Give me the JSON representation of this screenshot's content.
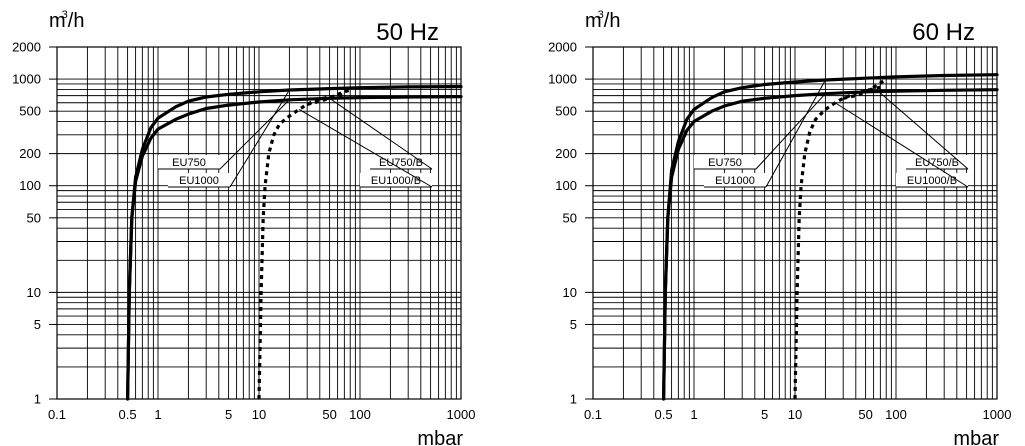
{
  "chart_data": [
    {
      "type": "line",
      "title": "50 Hz",
      "ylabel_base": "m",
      "ylabel_sup": "3",
      "ylabel_rest": "/h",
      "xlabel": "mbar",
      "xscale": "log",
      "yscale": "log",
      "xlim": [
        0.1,
        1000
      ],
      "ylim": [
        1,
        2000
      ],
      "xticks": [
        "0.1",
        "0.5",
        "1",
        "5",
        "10",
        "50",
        "100",
        "1000"
      ],
      "yticks": [
        "1",
        "5",
        "10",
        "50",
        "100",
        "200",
        "500",
        "1000",
        "2000"
      ],
      "grid": true,
      "series": [
        {
          "name": "EU1000",
          "style": "solid",
          "points": [
            [
              0.5,
              1
            ],
            [
              0.52,
              10
            ],
            [
              0.55,
              50
            ],
            [
              0.6,
              120
            ],
            [
              0.7,
              220
            ],
            [
              0.85,
              350
            ],
            [
              1,
              430
            ],
            [
              1.5,
              550
            ],
            [
              2,
              620
            ],
            [
              3,
              680
            ],
            [
              5,
              720
            ],
            [
              10,
              760
            ],
            [
              20,
              790
            ],
            [
              50,
              815
            ],
            [
              100,
              830
            ],
            [
              300,
              845
            ],
            [
              1000,
              850
            ]
          ]
        },
        {
          "name": "EU750",
          "style": "solid",
          "points": [
            [
              0.5,
              1
            ],
            [
              0.52,
              10
            ],
            [
              0.55,
              50
            ],
            [
              0.6,
              110
            ],
            [
              0.7,
              190
            ],
            [
              0.85,
              280
            ],
            [
              1,
              340
            ],
            [
              1.5,
              420
            ],
            [
              2,
              470
            ],
            [
              3,
              530
            ],
            [
              5,
              570
            ],
            [
              10,
              610
            ],
            [
              20,
              640
            ],
            [
              50,
              660
            ],
            [
              100,
              670
            ],
            [
              300,
              680
            ],
            [
              1000,
              685
            ]
          ]
        },
        {
          "name": "EU1000/B",
          "style": "dashed",
          "points": [
            [
              10,
              1
            ],
            [
              10.5,
              10
            ],
            [
              11,
              50
            ],
            [
              11.5,
              100
            ],
            [
              12.5,
              200
            ],
            [
              14,
              300
            ],
            [
              16,
              380
            ],
            [
              20,
              450
            ],
            [
              25,
              520
            ],
            [
              30,
              580
            ],
            [
              35,
              620
            ],
            [
              40,
              650
            ],
            [
              50,
              680
            ],
            [
              60,
              700
            ],
            [
              70,
              720
            ]
          ]
        },
        {
          "name": "EU750/B",
          "style": "dashed",
          "points": [
            [
              30,
              580
            ],
            [
              35,
              600
            ],
            [
              40,
              620
            ],
            [
              50,
              660
            ],
            [
              60,
              720
            ],
            [
              70,
              760
            ],
            [
              80,
              790
            ]
          ]
        }
      ],
      "annotations": [
        "EU750",
        "EU1000",
        "EU750/B",
        "EU1000/B"
      ]
    },
    {
      "type": "line",
      "title": "60 Hz",
      "ylabel_base": "m",
      "ylabel_sup": "3",
      "ylabel_rest": "/h",
      "xlabel": "mbar",
      "xscale": "log",
      "yscale": "log",
      "xlim": [
        0.1,
        1000
      ],
      "ylim": [
        1,
        2000
      ],
      "xticks": [
        "0.1",
        "0.5",
        "1",
        "5",
        "10",
        "50",
        "100",
        "1000"
      ],
      "yticks": [
        "1",
        "5",
        "10",
        "50",
        "100",
        "200",
        "500",
        "1000",
        "2000"
      ],
      "grid": true,
      "series": [
        {
          "name": "EU1000",
          "style": "solid",
          "points": [
            [
              0.5,
              1
            ],
            [
              0.52,
              10
            ],
            [
              0.55,
              50
            ],
            [
              0.6,
              140
            ],
            [
              0.7,
              260
            ],
            [
              0.85,
              420
            ],
            [
              1,
              520
            ],
            [
              1.5,
              670
            ],
            [
              2,
              760
            ],
            [
              3,
              830
            ],
            [
              5,
              890
            ],
            [
              10,
              940
            ],
            [
              20,
              980
            ],
            [
              50,
              1020
            ],
            [
              100,
              1050
            ],
            [
              300,
              1080
            ],
            [
              1000,
              1100
            ]
          ]
        },
        {
          "name": "EU750",
          "style": "solid",
          "points": [
            [
              0.5,
              1
            ],
            [
              0.52,
              10
            ],
            [
              0.55,
              50
            ],
            [
              0.6,
              120
            ],
            [
              0.7,
              220
            ],
            [
              0.85,
              330
            ],
            [
              1,
              400
            ],
            [
              1.5,
              500
            ],
            [
              2,
              560
            ],
            [
              3,
              620
            ],
            [
              5,
              660
            ],
            [
              10,
              700
            ],
            [
              20,
              730
            ],
            [
              50,
              760
            ],
            [
              100,
              770
            ],
            [
              300,
              785
            ],
            [
              1000,
              795
            ]
          ]
        },
        {
          "name": "EU1000/B",
          "style": "dashed",
          "points": [
            [
              10,
              1
            ],
            [
              10.5,
              10
            ],
            [
              11,
              50
            ],
            [
              11.5,
              100
            ],
            [
              12.5,
              200
            ],
            [
              14,
              320
            ],
            [
              16,
              420
            ],
            [
              20,
              520
            ],
            [
              25,
              600
            ],
            [
              30,
              660
            ],
            [
              35,
              700
            ],
            [
              40,
              740
            ],
            [
              50,
              780
            ],
            [
              60,
              810
            ],
            [
              70,
              840
            ]
          ]
        },
        {
          "name": "EU750/B",
          "style": "dashed",
          "points": [
            [
              30,
              660
            ],
            [
              40,
              700
            ],
            [
              50,
              760
            ],
            [
              60,
              840
            ],
            [
              70,
              920
            ],
            [
              80,
              1000
            ]
          ]
        }
      ],
      "annotations": [
        "EU750",
        "EU1000",
        "EU750/B",
        "EU1000/B"
      ]
    }
  ]
}
